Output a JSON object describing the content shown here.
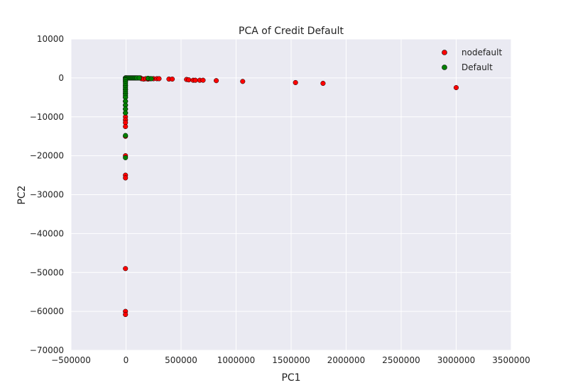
{
  "chart_data": {
    "type": "scatter",
    "title": "PCA of Credit Default",
    "xlabel": "PC1",
    "ylabel": "PC2",
    "xlim": [
      -500000,
      3500000
    ],
    "ylim": [
      -70000,
      10000
    ],
    "xticks": [
      -500000,
      0,
      500000,
      1000000,
      1500000,
      2000000,
      2500000,
      3000000,
      3500000
    ],
    "yticks": [
      10000,
      0,
      -10000,
      -20000,
      -30000,
      -40000,
      -50000,
      -60000,
      -70000
    ],
    "xtick_labels": [
      "−500000",
      "0",
      "500000",
      "1000000",
      "1500000",
      "2000000",
      "2500000",
      "3000000",
      "3500000"
    ],
    "ytick_labels": [
      "10000",
      "0",
      "−10000",
      "−20000",
      "−30000",
      "−40000",
      "−50000",
      "−60000",
      "−70000"
    ],
    "grid": true,
    "legend_position": "top-right",
    "series": [
      {
        "name": "nodefault",
        "color": "#ff0000",
        "points": [
          [
            -5000,
            0
          ],
          [
            0,
            0
          ],
          [
            5000,
            0
          ],
          [
            10000,
            0
          ],
          [
            20000,
            0
          ],
          [
            30000,
            0
          ],
          [
            40000,
            0
          ],
          [
            50000,
            0
          ],
          [
            60000,
            0
          ],
          [
            70000,
            0
          ],
          [
            80000,
            0
          ],
          [
            90000,
            0
          ],
          [
            100000,
            0
          ],
          [
            110000,
            0
          ],
          [
            120000,
            0
          ],
          [
            130000,
            0
          ],
          [
            140000,
            -200
          ],
          [
            160000,
            -300
          ],
          [
            180000,
            -200
          ],
          [
            200000,
            -300
          ],
          [
            220000,
            -200
          ],
          [
            250000,
            -200
          ],
          [
            280000,
            -200
          ],
          [
            300000,
            -200
          ],
          [
            390000,
            -300
          ],
          [
            420000,
            -300
          ],
          [
            550000,
            -400
          ],
          [
            570000,
            -500
          ],
          [
            610000,
            -600
          ],
          [
            630000,
            -600
          ],
          [
            670000,
            -600
          ],
          [
            700000,
            -600
          ],
          [
            820000,
            -700
          ],
          [
            1060000,
            -900
          ],
          [
            1540000,
            -1200
          ],
          [
            1790000,
            -1400
          ],
          [
            3000000,
            -2500
          ],
          [
            -5000,
            -500
          ],
          [
            -5000,
            -1000
          ],
          [
            -5000,
            -2000
          ],
          [
            -5000,
            -3000
          ],
          [
            -5000,
            -4000
          ],
          [
            -5000,
            -5000
          ],
          [
            -5000,
            -6000
          ],
          [
            -5000,
            -7000
          ],
          [
            -5000,
            -8000
          ],
          [
            -5000,
            -9000
          ],
          [
            -5000,
            -10000
          ],
          [
            -5000,
            -10800
          ],
          [
            -5000,
            -11500
          ],
          [
            -5000,
            -12500
          ],
          [
            -5000,
            -15000
          ],
          [
            -5000,
            -20000
          ],
          [
            -5000,
            -25000
          ],
          [
            -5000,
            -25700
          ],
          [
            -5000,
            -49000
          ],
          [
            -5000,
            -60000
          ],
          [
            -5000,
            -60800
          ]
        ]
      },
      {
        "name": "Default",
        "color": "#008000",
        "points": [
          [
            -5000,
            0
          ],
          [
            0,
            0
          ],
          [
            10000,
            0
          ],
          [
            20000,
            0
          ],
          [
            30000,
            0
          ],
          [
            40000,
            0
          ],
          [
            50000,
            0
          ],
          [
            60000,
            0
          ],
          [
            70000,
            0
          ],
          [
            80000,
            0
          ],
          [
            90000,
            0
          ],
          [
            100000,
            0
          ],
          [
            120000,
            0
          ],
          [
            200000,
            -100
          ],
          [
            230000,
            -200
          ],
          [
            -5000,
            -500
          ],
          [
            -5000,
            -1000
          ],
          [
            -5000,
            -1500
          ],
          [
            -5000,
            -2000
          ],
          [
            -5000,
            -2500
          ],
          [
            -5000,
            -3000
          ],
          [
            -5000,
            -3500
          ],
          [
            -5000,
            -4000
          ],
          [
            -5000,
            -4500
          ],
          [
            -5000,
            -5000
          ],
          [
            -5000,
            -6000
          ],
          [
            -5000,
            -7000
          ],
          [
            -5000,
            -8000
          ],
          [
            -5000,
            -9000
          ],
          [
            -5000,
            -14800
          ],
          [
            -5000,
            -20500
          ]
        ]
      }
    ]
  }
}
